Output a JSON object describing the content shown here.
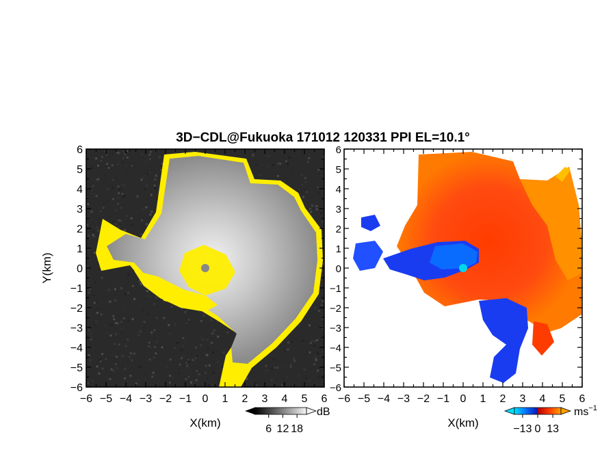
{
  "title": "3D−CDL@Fukuoka 171012 120331 PPI EL=10.1°",
  "chart_data": [
    {
      "type": "heatmap",
      "panel": "left",
      "quantity": "SNR",
      "xlabel": "X(km)",
      "ylabel": "Y(km)",
      "xlim": [
        -6,
        6
      ],
      "ylim": [
        -6,
        6
      ],
      "xticks": [
        "−6",
        "−5",
        "−4",
        "−3",
        "−2",
        "−1",
        "0",
        "1",
        "2",
        "3",
        "4",
        "5",
        "6"
      ],
      "yticks": [
        "6",
        "5",
        "4",
        "3",
        "2",
        "1",
        "0",
        "−1",
        "−2",
        "−3",
        "−4",
        "−5",
        "−6"
      ],
      "radar_center": [
        0,
        0
      ],
      "background_color": "#2a2a2a",
      "echo_color": "#b8b8b8",
      "edge_color": "#ffee00",
      "colorbar": {
        "unit": "dB",
        "ticks": [
          6,
          12,
          18
        ],
        "tick_labels": [
          "6",
          "12",
          "18"
        ],
        "colors": [
          "#000000",
          "#3c3c3c",
          "#787878",
          "#b4b4b4",
          "#f0f0f0"
        ]
      }
    },
    {
      "type": "heatmap",
      "panel": "right",
      "quantity": "Doppler velocity",
      "xlabel": "X(km)",
      "xlim": [
        -6,
        6
      ],
      "ylim": [
        -6,
        6
      ],
      "xticks": [
        "−6",
        "−5",
        "−4",
        "−3",
        "−2",
        "−1",
        "0",
        "1",
        "2",
        "3",
        "4",
        "5",
        "6"
      ],
      "yticks": [
        "6",
        "5",
        "4",
        "3",
        "2",
        "1",
        "0",
        "−1",
        "−2",
        "−3",
        "−4",
        "−5",
        "−6"
      ],
      "radar_center": [
        0,
        0
      ],
      "center_color": "#00d8e8",
      "negative_color": "#1a3cf0",
      "positive_color": "#ff3c00",
      "far_positive_color": "#ff9000",
      "colorbar": {
        "unit": "ms",
        "unit_exponent": "−1",
        "ticks": [
          -13,
          0,
          13
        ],
        "tick_labels": [
          "−13",
          "0",
          "13"
        ],
        "colors": [
          "#00e0ff",
          "#0060ff",
          "#0010c0",
          "#c00000",
          "#ff4000",
          "#ffa000"
        ]
      }
    }
  ]
}
